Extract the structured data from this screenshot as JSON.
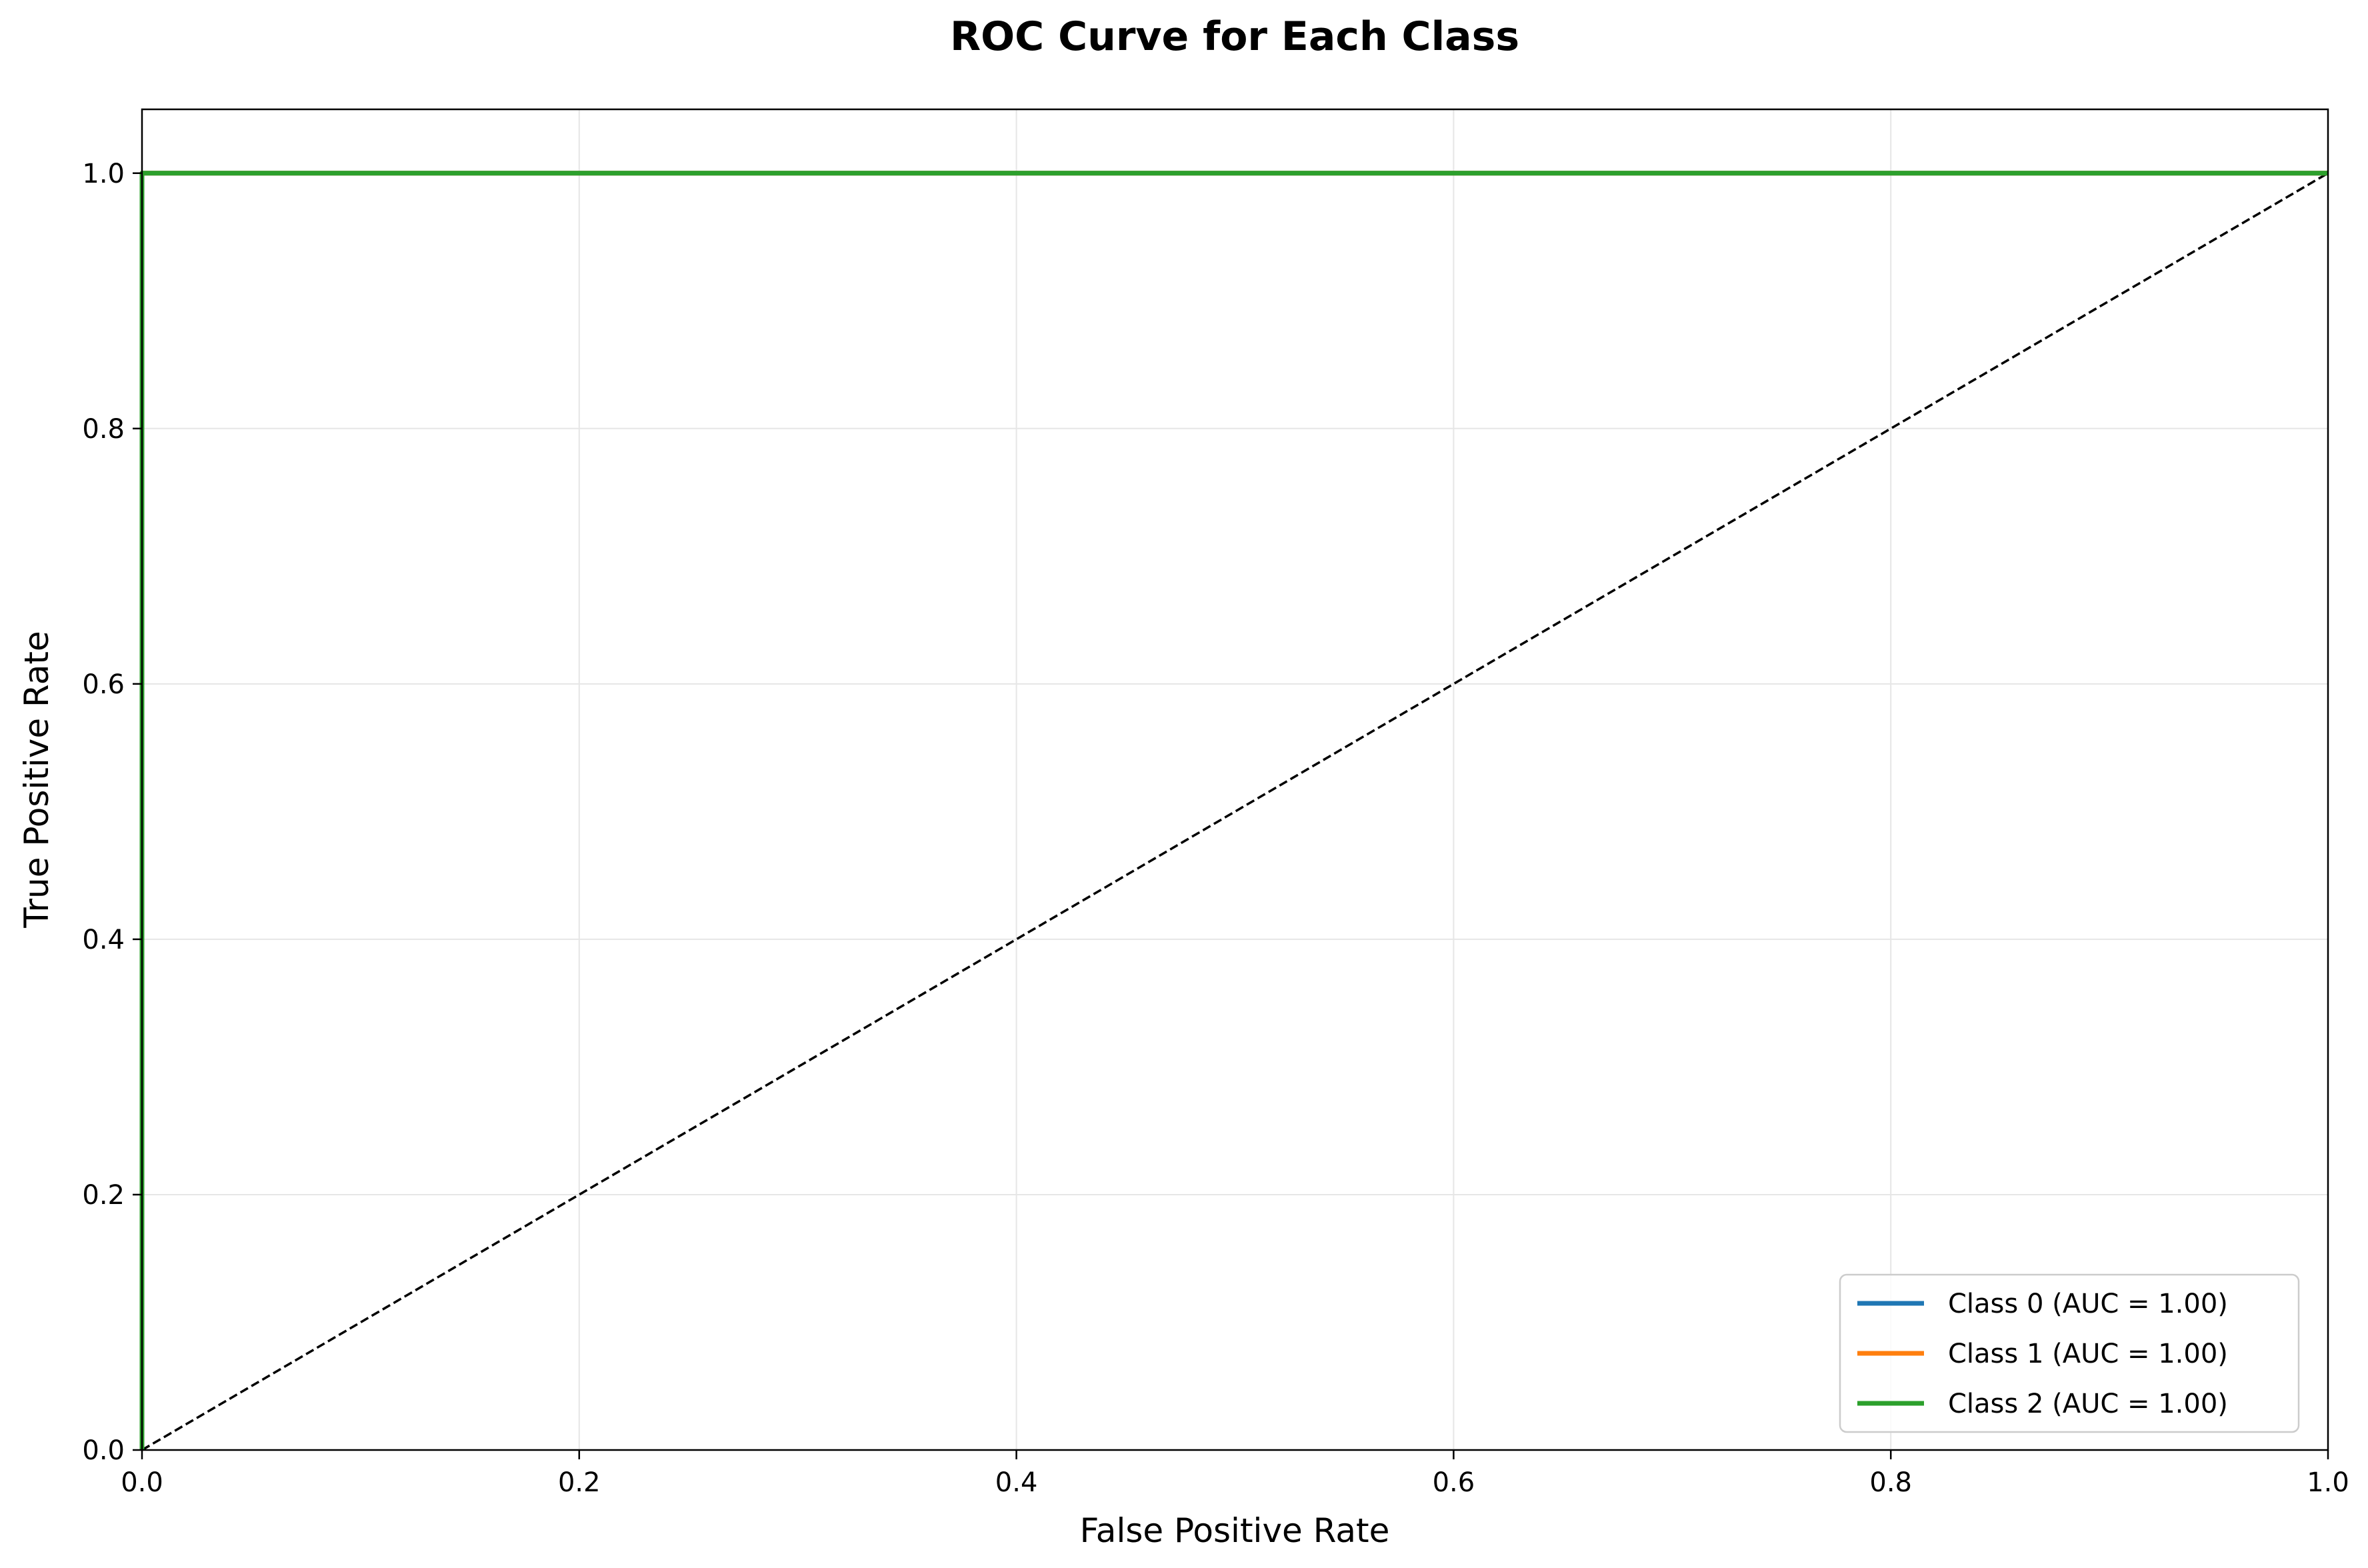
{
  "chart_data": {
    "type": "line",
    "title": "ROC Curve for Each Class",
    "xlabel": "False Positive Rate",
    "ylabel": "True Positive Rate",
    "xlim": [
      0.0,
      1.0
    ],
    "ylim": [
      0.0,
      1.05
    ],
    "xticks": [
      "0.0",
      "0.2",
      "0.4",
      "0.6",
      "0.8",
      "1.0"
    ],
    "yticks": [
      "0.0",
      "0.2",
      "0.4",
      "0.6",
      "0.8",
      "1.0"
    ],
    "grid": true,
    "legend_position": "lower-right",
    "series": [
      {
        "name": "Class 0 (AUC = 1.00)",
        "color": "#1f77b4",
        "x": [
          0.0,
          0.0,
          1.0
        ],
        "y": [
          0.0,
          1.0,
          1.0
        ]
      },
      {
        "name": "Class 1 (AUC = 1.00)",
        "color": "#ff7f0e",
        "x": [
          0.0,
          0.0,
          1.0
        ],
        "y": [
          0.0,
          1.0,
          1.0
        ]
      },
      {
        "name": "Class 2 (AUC = 1.00)",
        "color": "#2ca02c",
        "x": [
          0.0,
          0.0,
          1.0
        ],
        "y": [
          0.0,
          1.0,
          1.0
        ]
      }
    ],
    "reference_line": {
      "x": [
        0.0,
        1.0
      ],
      "y": [
        0.0,
        1.0
      ],
      "color": "#000000",
      "style": "dashed"
    }
  }
}
